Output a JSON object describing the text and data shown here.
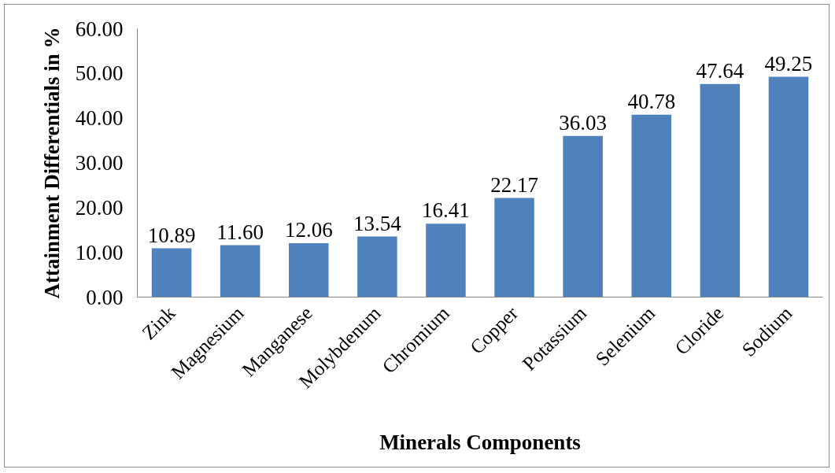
{
  "chart_data": {
    "type": "bar",
    "xlabel": "Minerals Components",
    "ylabel": "Attainment Differentials in %",
    "categories": [
      "Zink",
      "Magnesium",
      "Manganese",
      "Molybdenum",
      "Chromium",
      "Copper",
      "Potassium",
      "Selenium",
      "Cloride",
      "Sodium"
    ],
    "values": [
      10.89,
      11.6,
      12.06,
      13.54,
      16.41,
      22.17,
      36.03,
      40.78,
      47.64,
      49.25
    ],
    "value_labels": [
      "10.89",
      "11.60",
      "12.06",
      "13.54",
      "16.41",
      "22.17",
      "36.03",
      "40.78",
      "47.64",
      "49.25"
    ],
    "color": "#4f81bd",
    "ylim": [
      0,
      60
    ],
    "yticks": [
      {
        "value": 0,
        "label": "0.00"
      },
      {
        "value": 10,
        "label": "10.00"
      },
      {
        "value": 20,
        "label": "20.00"
      },
      {
        "value": 30,
        "label": "30.00"
      },
      {
        "value": 40,
        "label": "40.00"
      },
      {
        "value": 50,
        "label": "50.00"
      },
      {
        "value": 60,
        "label": "60.00"
      }
    ]
  }
}
